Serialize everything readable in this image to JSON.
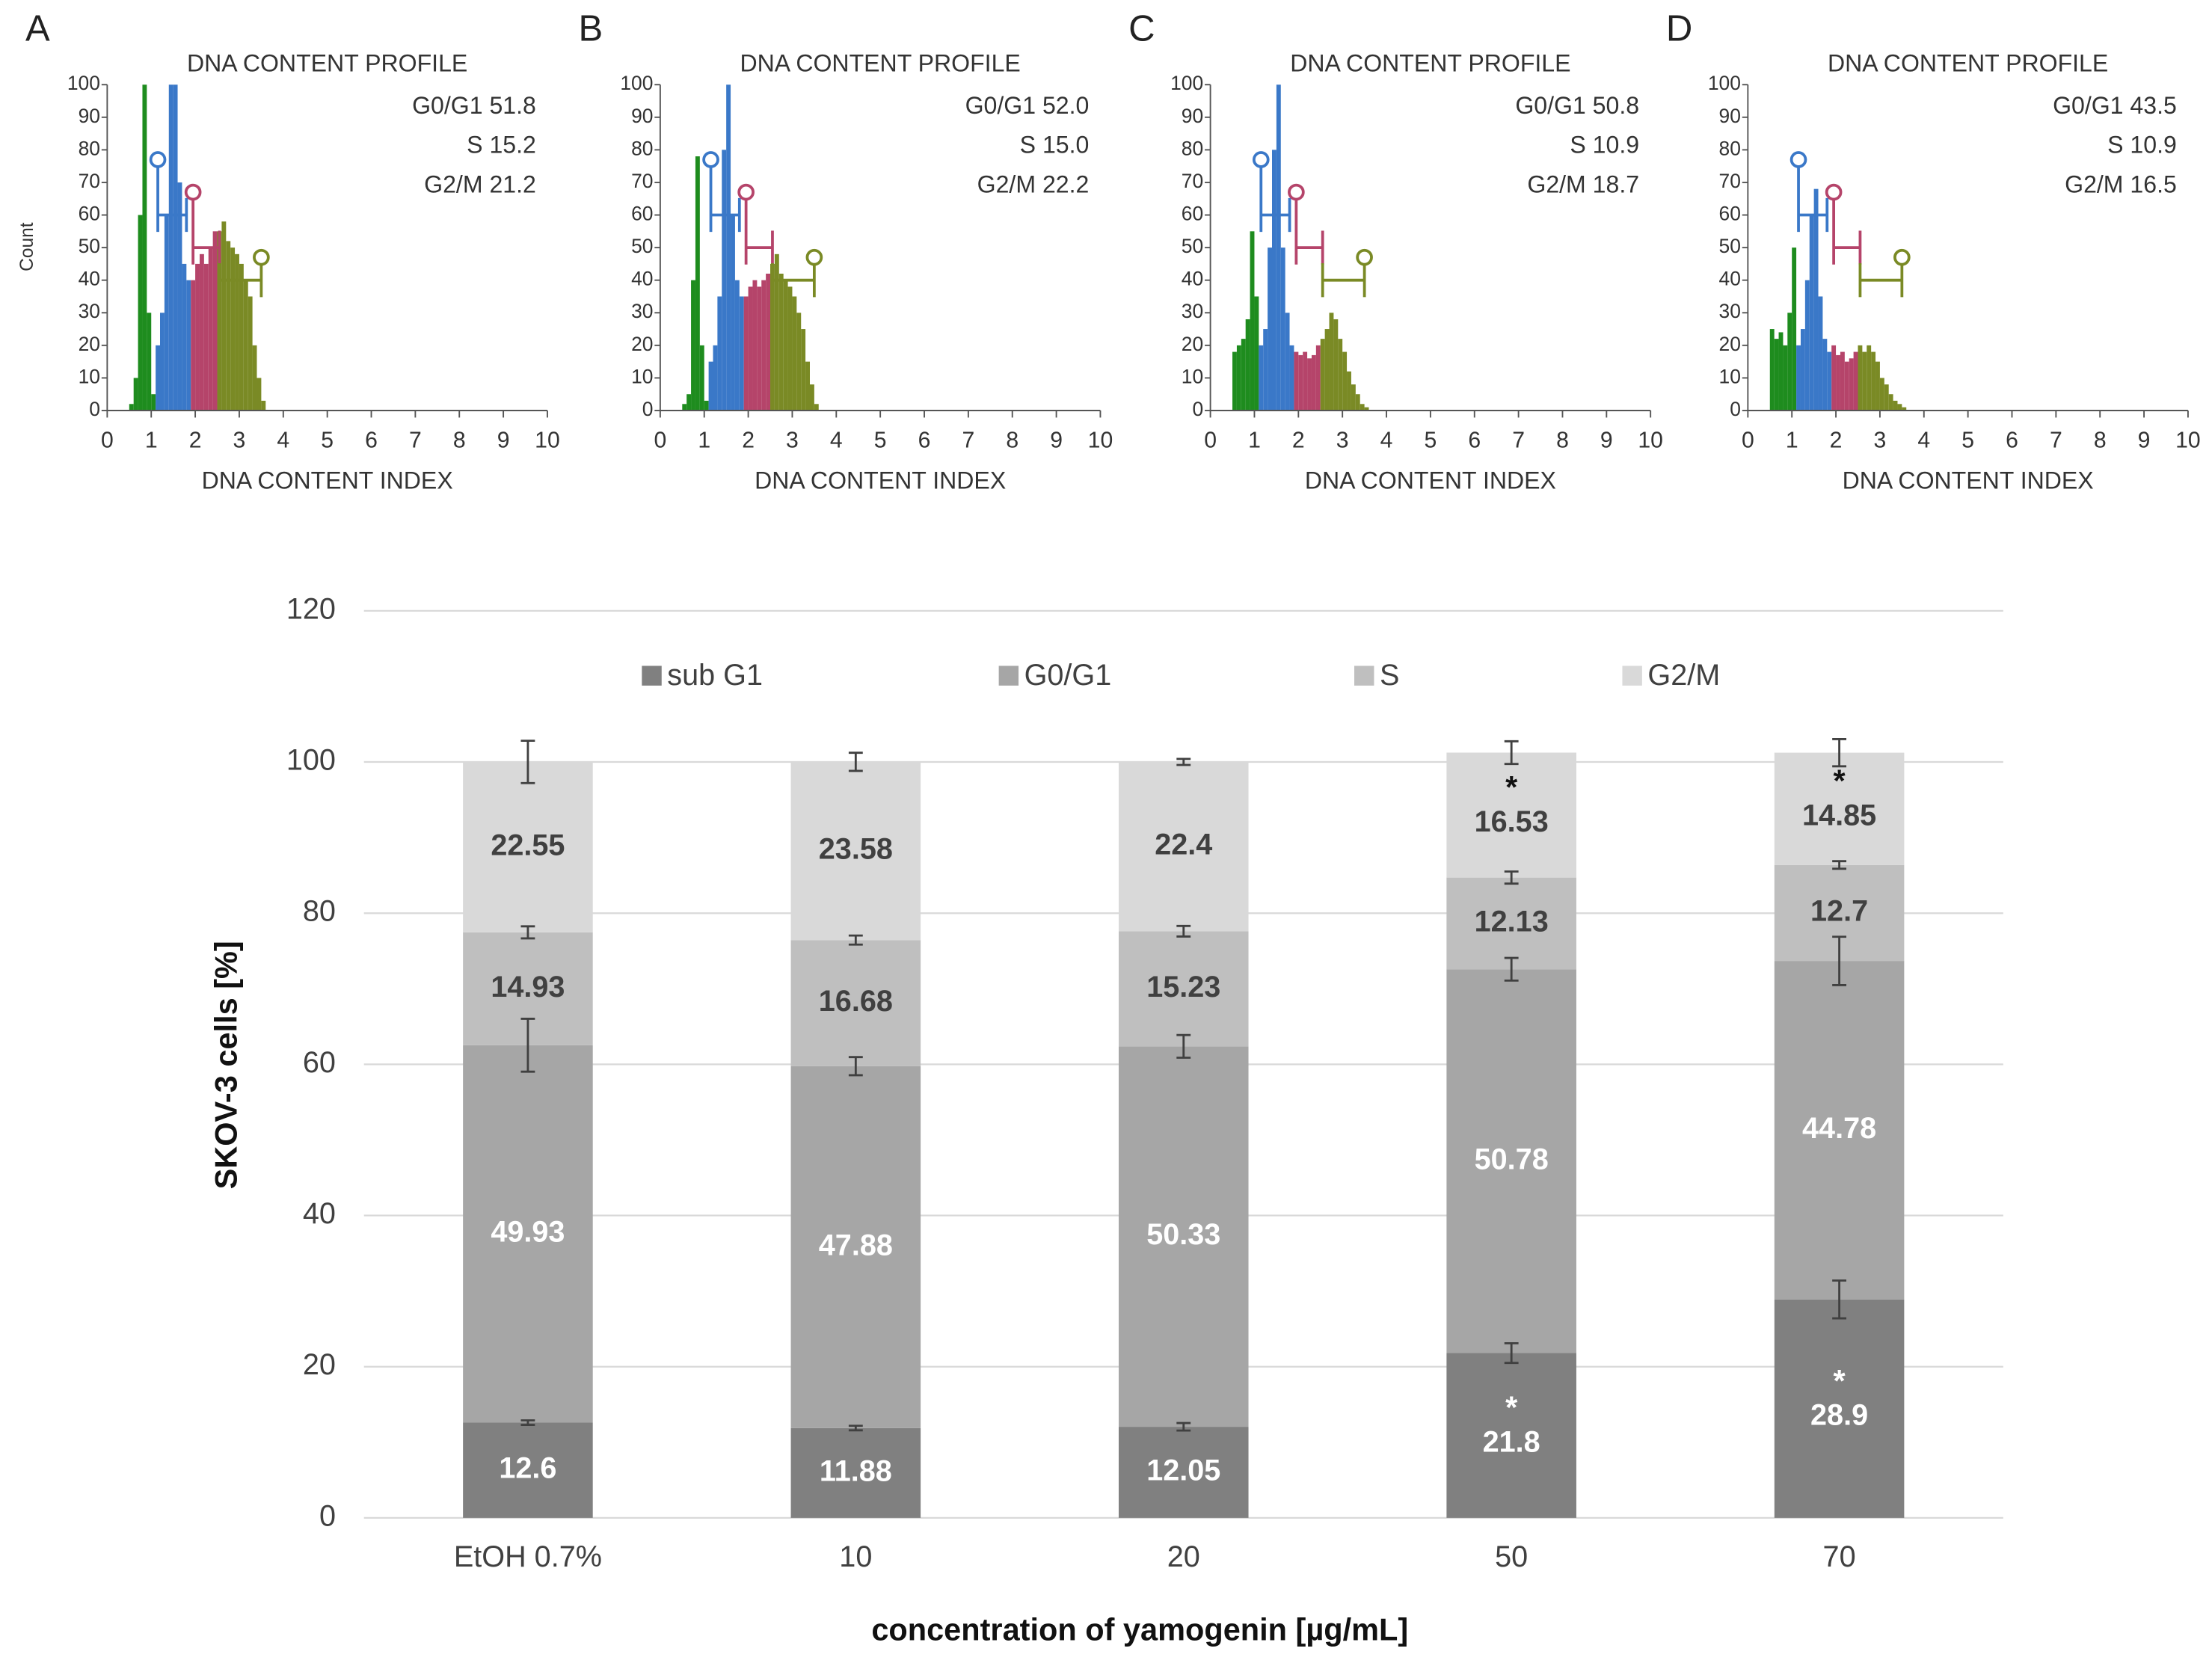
{
  "chart_data": [
    {
      "type": "histogram",
      "panel": "A",
      "title": "DNA CONTENT PROFILE",
      "xlabel": "DNA CONTENT INDEX",
      "ylabel": "Count",
      "stats": [
        "G0/G1 51.8",
        "S 15.2",
        "G2/M 21.2"
      ],
      "series": [
        {
          "color": "#1e8c1e",
          "bins": [
            0.5,
            0.6,
            0.7,
            0.8,
            0.9,
            1.0,
            1.1
          ],
          "values": [
            2,
            10,
            60,
            100,
            30,
            5
          ]
        },
        {
          "color": "#3a78c8",
          "bins": [
            1.1,
            1.2,
            1.3,
            1.4,
            1.5,
            1.6,
            1.7,
            1.8,
            1.9
          ],
          "values": [
            20,
            30,
            60,
            100,
            100,
            70,
            45,
            40
          ]
        },
        {
          "color": "#b5446a",
          "bins": [
            1.9,
            2.0,
            2.1,
            2.2,
            2.3,
            2.4,
            2.5
          ],
          "values": [
            40,
            45,
            48,
            45,
            50,
            55
          ]
        },
        {
          "color": "#7a8a25",
          "bins": [
            2.5,
            2.6,
            2.7,
            2.8,
            2.9,
            3.0,
            3.1,
            3.2,
            3.3,
            3.4,
            3.5,
            3.6
          ],
          "values": [
            55,
            58,
            52,
            50,
            48,
            45,
            40,
            35,
            20,
            10,
            3
          ]
        }
      ],
      "xlim": [
        0,
        10
      ],
      "xticks": [
        0,
        1,
        2,
        3,
        4,
        5,
        6,
        7,
        8,
        9,
        10
      ],
      "ylim": [
        0,
        100
      ],
      "yticks": [
        0,
        10,
        20,
        30,
        40,
        50,
        60,
        70,
        80,
        90,
        100
      ]
    },
    {
      "type": "histogram",
      "panel": "B",
      "title": "DNA CONTENT PROFILE",
      "xlabel": "DNA CONTENT INDEX",
      "stats": [
        "G0/G1 52.0",
        "S 15.0",
        "G2/M 22.2"
      ],
      "series": [
        {
          "color": "#1e8c1e",
          "bins": [
            0.5,
            0.6,
            0.7,
            0.8,
            0.9,
            1.0,
            1.1
          ],
          "values": [
            2,
            5,
            40,
            78,
            20,
            3
          ]
        },
        {
          "color": "#3a78c8",
          "bins": [
            1.1,
            1.2,
            1.3,
            1.4,
            1.5,
            1.6,
            1.7,
            1.8,
            1.9
          ],
          "values": [
            15,
            20,
            35,
            80,
            100,
            60,
            40,
            35
          ]
        },
        {
          "color": "#b5446a",
          "bins": [
            1.9,
            2.0,
            2.1,
            2.2,
            2.3,
            2.4,
            2.5
          ],
          "values": [
            35,
            38,
            40,
            38,
            40,
            42
          ]
        },
        {
          "color": "#7a8a25",
          "bins": [
            2.5,
            2.6,
            2.7,
            2.8,
            2.9,
            3.0,
            3.1,
            3.2,
            3.3,
            3.4,
            3.5,
            3.6
          ],
          "values": [
            45,
            48,
            42,
            40,
            38,
            35,
            30,
            25,
            15,
            8,
            2
          ]
        }
      ],
      "xlim": [
        0,
        10
      ],
      "xticks": [
        0,
        1,
        2,
        3,
        4,
        5,
        6,
        7,
        8,
        9,
        10
      ],
      "ylim": [
        0,
        100
      ],
      "yticks": [
        0,
        10,
        20,
        30,
        40,
        50,
        60,
        70,
        80,
        90,
        100
      ]
    },
    {
      "type": "histogram",
      "panel": "C",
      "title": "DNA CONTENT PROFILE",
      "xlabel": "DNA CONTENT INDEX",
      "stats": [
        "G0/G1 50.8",
        "S 10.9",
        "G2/M 18.7"
      ],
      "series": [
        {
          "color": "#1e8c1e",
          "bins": [
            0.5,
            0.6,
            0.7,
            0.8,
            0.9,
            1.0,
            1.1
          ],
          "values": [
            18,
            20,
            22,
            28,
            55,
            35
          ]
        },
        {
          "color": "#3a78c8",
          "bins": [
            1.1,
            1.2,
            1.3,
            1.4,
            1.5,
            1.6,
            1.7,
            1.8,
            1.9
          ],
          "values": [
            20,
            25,
            50,
            80,
            100,
            50,
            30,
            20
          ]
        },
        {
          "color": "#b5446a",
          "bins": [
            1.9,
            2.0,
            2.1,
            2.2,
            2.3,
            2.4,
            2.5
          ],
          "values": [
            18,
            17,
            18,
            16,
            17,
            20
          ]
        },
        {
          "color": "#7a8a25",
          "bins": [
            2.5,
            2.6,
            2.7,
            2.8,
            2.9,
            3.0,
            3.1,
            3.2,
            3.3,
            3.4,
            3.5,
            3.6
          ],
          "values": [
            22,
            25,
            30,
            28,
            22,
            18,
            12,
            8,
            5,
            2,
            1
          ]
        }
      ],
      "xlim": [
        0,
        10
      ],
      "xticks": [
        0,
        1,
        2,
        3,
        4,
        5,
        6,
        7,
        8,
        9,
        10
      ],
      "ylim": [
        0,
        100
      ],
      "yticks": [
        0,
        10,
        20,
        30,
        40,
        50,
        60,
        70,
        80,
        90,
        100
      ]
    },
    {
      "type": "histogram",
      "panel": "D",
      "title": "DNA CONTENT PROFILE",
      "xlabel": "DNA CONTENT INDEX",
      "stats": [
        "G0/G1 43.5",
        "S 10.9",
        "G2/M 16.5"
      ],
      "series": [
        {
          "color": "#1e8c1e",
          "bins": [
            0.5,
            0.6,
            0.7,
            0.8,
            0.9,
            1.0,
            1.1
          ],
          "values": [
            25,
            22,
            24,
            20,
            30,
            50
          ]
        },
        {
          "color": "#3a78c8",
          "bins": [
            1.1,
            1.2,
            1.3,
            1.4,
            1.5,
            1.6,
            1.7,
            1.8,
            1.9
          ],
          "values": [
            20,
            25,
            40,
            60,
            68,
            35,
            22,
            18
          ]
        },
        {
          "color": "#b5446a",
          "bins": [
            1.9,
            2.0,
            2.1,
            2.2,
            2.3,
            2.4,
            2.5
          ],
          "values": [
            20,
            17,
            18,
            15,
            16,
            18
          ]
        },
        {
          "color": "#7a8a25",
          "bins": [
            2.5,
            2.6,
            2.7,
            2.8,
            2.9,
            3.0,
            3.1,
            3.2,
            3.3,
            3.4,
            3.5,
            3.6
          ],
          "values": [
            20,
            18,
            20,
            18,
            15,
            10,
            8,
            5,
            3,
            2,
            1
          ]
        }
      ],
      "xlim": [
        0,
        10
      ],
      "xticks": [
        0,
        1,
        2,
        3,
        4,
        5,
        6,
        7,
        8,
        9,
        10
      ],
      "ylim": [
        0,
        100
      ],
      "yticks": [
        0,
        10,
        20,
        30,
        40,
        50,
        60,
        70,
        80,
        90,
        100
      ]
    },
    {
      "type": "bar",
      "stacked": true,
      "ylabel": "SKOV-3 cells [%]",
      "xlabel": "concentration of yamogenin [µg/mL]",
      "categories": [
        "EtOH 0.7%",
        "10",
        "20",
        "50",
        "70"
      ],
      "series": [
        {
          "name": "sub G1",
          "color": "#808080",
          "label_color": "#ffffff",
          "values": [
            12.6,
            11.88,
            12.05,
            21.8,
            28.9
          ],
          "errors": [
            0.3,
            0.3,
            0.5,
            1.3,
            2.5
          ],
          "markers": [
            null,
            null,
            null,
            "*",
            "*"
          ]
        },
        {
          "name": "G0/G1",
          "color": "#a6a6a6",
          "label_color": "#ffffff",
          "values": [
            49.93,
            47.88,
            50.33,
            50.78,
            44.78
          ],
          "errors": [
            3.5,
            1.2,
            1.5,
            1.5,
            3.2
          ]
        },
        {
          "name": "S",
          "color": "#bfbfbf",
          "label_color": "#404040",
          "values": [
            14.93,
            16.68,
            15.23,
            12.13,
            12.7
          ],
          "errors": [
            0.8,
            0.6,
            0.7,
            0.8,
            0.5
          ]
        },
        {
          "name": "G2/M",
          "color": "#d9d9d9",
          "label_color": "#404040",
          "values": [
            22.55,
            23.58,
            22.4,
            16.53,
            14.85
          ],
          "errors": [
            2.8,
            1.2,
            0.4,
            1.5,
            1.8
          ],
          "markers": [
            null,
            null,
            null,
            "*",
            "*"
          ]
        }
      ],
      "ylim": [
        0,
        120
      ],
      "yticks": [
        0,
        20,
        40,
        60,
        80,
        100,
        120
      ],
      "grid": true,
      "legend": "top"
    }
  ]
}
